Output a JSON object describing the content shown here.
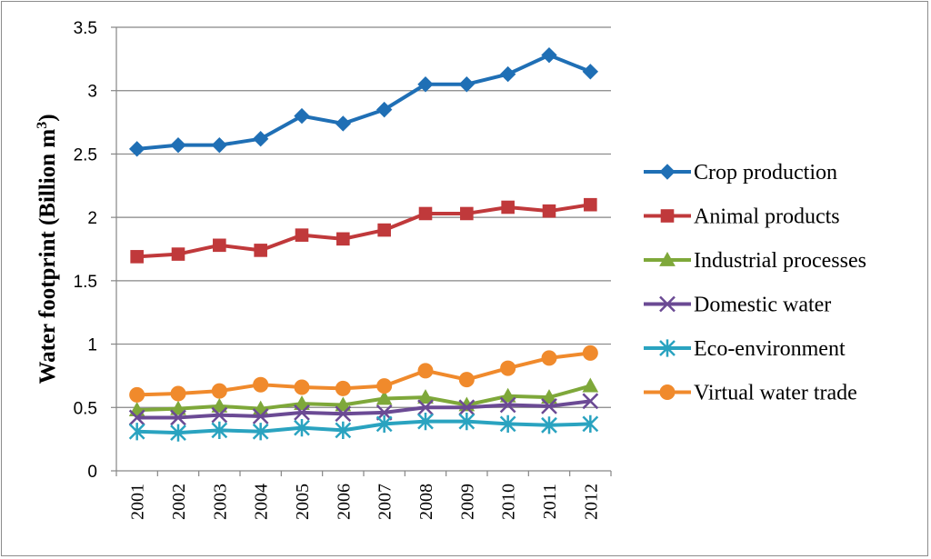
{
  "chart_data": {
    "type": "line",
    "title": "",
    "xlabel": "",
    "ylabel": "Water footprint (Billion m",
    "ylabel_sup": "3",
    "ylabel_close": ")",
    "ylim": [
      0,
      3.5
    ],
    "yticks": [
      "0",
      "0.5",
      "1",
      "1.5",
      "2",
      "2.5",
      "3",
      "3.5"
    ],
    "categories": [
      "2001",
      "2002",
      "2003",
      "2004",
      "2005",
      "2006",
      "2007",
      "2008",
      "2009",
      "2010",
      "2011",
      "2012"
    ],
    "legend_position": "right",
    "grid": "horizontal",
    "series": [
      {
        "name": "Crop production",
        "color": "#1f6fb5",
        "marker": "diamond",
        "values": [
          2.54,
          2.57,
          2.57,
          2.62,
          2.8,
          2.74,
          2.85,
          3.05,
          3.05,
          3.13,
          3.28,
          3.15
        ]
      },
      {
        "name": "Animal products",
        "color": "#c0393b",
        "marker": "square",
        "values": [
          1.69,
          1.71,
          1.78,
          1.74,
          1.86,
          1.83,
          1.9,
          2.03,
          2.03,
          2.08,
          2.05,
          2.1
        ]
      },
      {
        "name": "Industrial processes",
        "color": "#7ea83a",
        "marker": "triangle",
        "values": [
          0.48,
          0.49,
          0.51,
          0.49,
          0.53,
          0.52,
          0.57,
          0.58,
          0.52,
          0.59,
          0.58,
          0.67
        ]
      },
      {
        "name": "Domestic water",
        "color": "#6b4a94",
        "marker": "x",
        "values": [
          0.42,
          0.42,
          0.44,
          0.43,
          0.46,
          0.45,
          0.46,
          0.5,
          0.5,
          0.52,
          0.51,
          0.55
        ]
      },
      {
        "name": "Eco-environment",
        "color": "#2aa3c0",
        "marker": "asterisk",
        "values": [
          0.31,
          0.3,
          0.32,
          0.31,
          0.34,
          0.32,
          0.37,
          0.39,
          0.39,
          0.37,
          0.36,
          0.37
        ]
      },
      {
        "name": "Virtual water trade",
        "color": "#f08a2c",
        "marker": "circle",
        "values": [
          0.6,
          0.61,
          0.63,
          0.68,
          0.66,
          0.65,
          0.67,
          0.79,
          0.72,
          0.81,
          0.89,
          0.93
        ]
      }
    ]
  }
}
